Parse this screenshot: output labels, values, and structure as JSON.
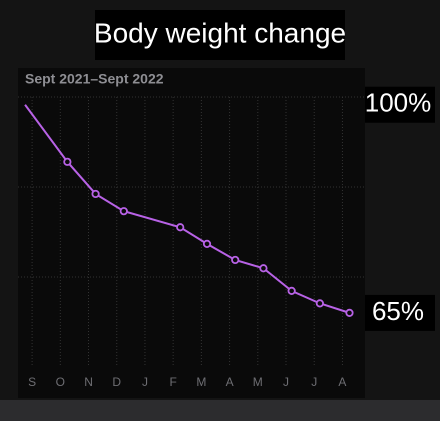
{
  "chart_data": {
    "type": "line",
    "title": "Body weight change",
    "subtitle": "Sept 2021–Sept 2022",
    "x": [
      -0.25,
      1.25,
      2.25,
      3.25,
      5.25,
      6.2,
      7.2,
      8.2,
      9.2,
      10.2,
      11.25
    ],
    "series": [
      {
        "color": "#b862e6",
        "values": [
          100,
          90.4,
          85.0,
          82.1,
          79.4,
          76.6,
          73.9,
          72.5,
          68.7,
          66.6,
          65.0
        ]
      }
    ],
    "xlim": [
      -0.5,
      11.8
    ],
    "xticks": [
      {
        "value": 0,
        "label": "S"
      },
      {
        "value": 1,
        "label": "O"
      },
      {
        "value": 2,
        "label": "N"
      },
      {
        "value": 3,
        "label": "D"
      },
      {
        "value": 4,
        "label": "J"
      },
      {
        "value": 5,
        "label": "F"
      },
      {
        "value": 6,
        "label": "M"
      },
      {
        "value": 7,
        "label": "A"
      },
      {
        "value": 8,
        "label": "M"
      },
      {
        "value": 9,
        "label": "J"
      },
      {
        "value": 10,
        "label": "J"
      },
      {
        "value": 11,
        "label": "A"
      }
    ],
    "ylim": [
      55.9,
      101.3
    ],
    "annotations": [
      {
        "value": 100,
        "label": "100%"
      },
      {
        "value": 65,
        "label": "65%"
      }
    ]
  }
}
